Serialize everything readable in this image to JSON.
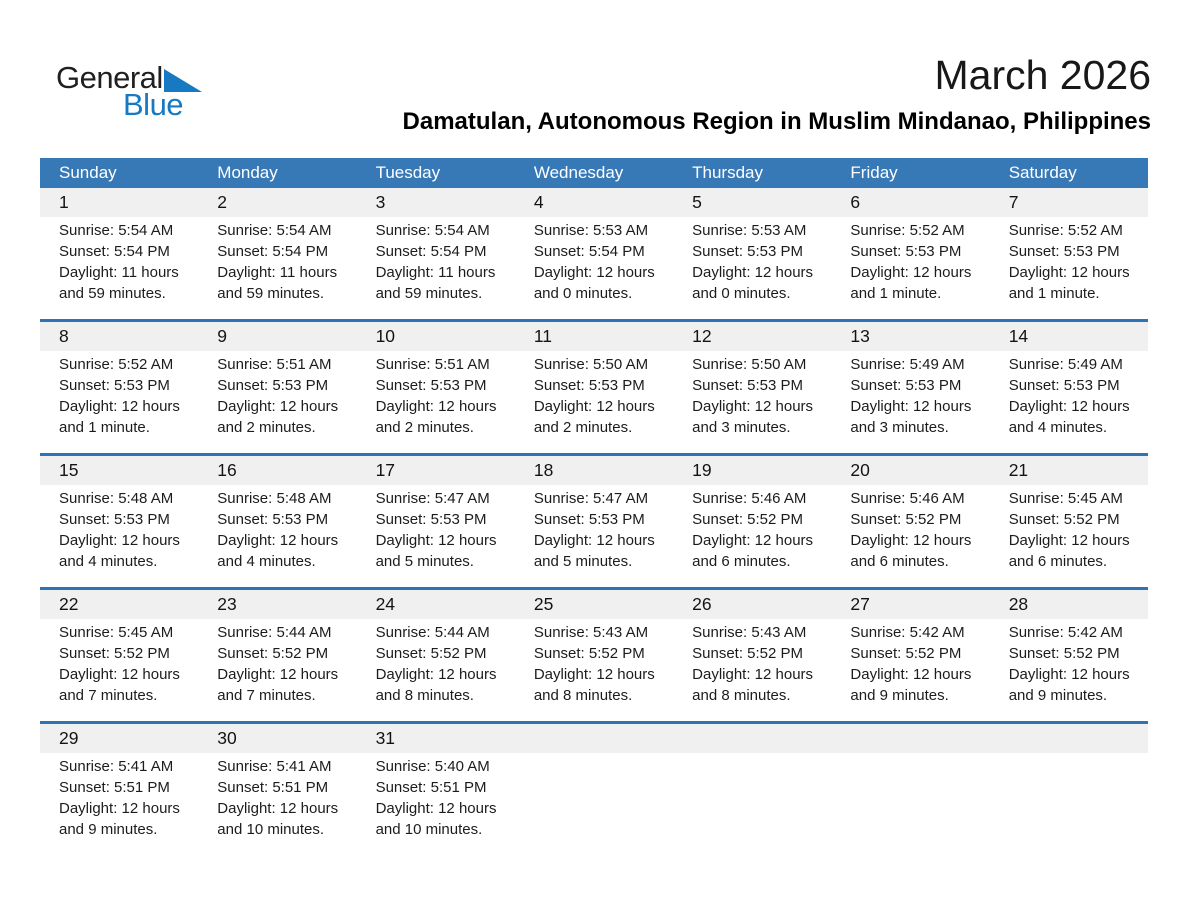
{
  "logo": {
    "general": "General",
    "blue": "Blue"
  },
  "title": "March 2026",
  "subtitle": "Damatulan, Autonomous Region in Muslim Mindanao, Philippines",
  "weekdays": [
    "Sunday",
    "Monday",
    "Tuesday",
    "Wednesday",
    "Thursday",
    "Friday",
    "Saturday"
  ],
  "colors": {
    "header_bg": "#3779B7",
    "separator": "#2E74B5",
    "strip_bg": "#F0F0F0",
    "logo_blue": "#1779C1"
  },
  "weeks": [
    [
      {
        "day": "1",
        "sunrise": "Sunrise: 5:54 AM",
        "sunset": "Sunset: 5:54 PM",
        "daylight1": "Daylight: 11 hours",
        "daylight2": "and 59 minutes."
      },
      {
        "day": "2",
        "sunrise": "Sunrise: 5:54 AM",
        "sunset": "Sunset: 5:54 PM",
        "daylight1": "Daylight: 11 hours",
        "daylight2": "and 59 minutes."
      },
      {
        "day": "3",
        "sunrise": "Sunrise: 5:54 AM",
        "sunset": "Sunset: 5:54 PM",
        "daylight1": "Daylight: 11 hours",
        "daylight2": "and 59 minutes."
      },
      {
        "day": "4",
        "sunrise": "Sunrise: 5:53 AM",
        "sunset": "Sunset: 5:54 PM",
        "daylight1": "Daylight: 12 hours",
        "daylight2": "and 0 minutes."
      },
      {
        "day": "5",
        "sunrise": "Sunrise: 5:53 AM",
        "sunset": "Sunset: 5:53 PM",
        "daylight1": "Daylight: 12 hours",
        "daylight2": "and 0 minutes."
      },
      {
        "day": "6",
        "sunrise": "Sunrise: 5:52 AM",
        "sunset": "Sunset: 5:53 PM",
        "daylight1": "Daylight: 12 hours",
        "daylight2": "and 1 minute."
      },
      {
        "day": "7",
        "sunrise": "Sunrise: 5:52 AM",
        "sunset": "Sunset: 5:53 PM",
        "daylight1": "Daylight: 12 hours",
        "daylight2": "and 1 minute."
      }
    ],
    [
      {
        "day": "8",
        "sunrise": "Sunrise: 5:52 AM",
        "sunset": "Sunset: 5:53 PM",
        "daylight1": "Daylight: 12 hours",
        "daylight2": "and 1 minute."
      },
      {
        "day": "9",
        "sunrise": "Sunrise: 5:51 AM",
        "sunset": "Sunset: 5:53 PM",
        "daylight1": "Daylight: 12 hours",
        "daylight2": "and 2 minutes."
      },
      {
        "day": "10",
        "sunrise": "Sunrise: 5:51 AM",
        "sunset": "Sunset: 5:53 PM",
        "daylight1": "Daylight: 12 hours",
        "daylight2": "and 2 minutes."
      },
      {
        "day": "11",
        "sunrise": "Sunrise: 5:50 AM",
        "sunset": "Sunset: 5:53 PM",
        "daylight1": "Daylight: 12 hours",
        "daylight2": "and 2 minutes."
      },
      {
        "day": "12",
        "sunrise": "Sunrise: 5:50 AM",
        "sunset": "Sunset: 5:53 PM",
        "daylight1": "Daylight: 12 hours",
        "daylight2": "and 3 minutes."
      },
      {
        "day": "13",
        "sunrise": "Sunrise: 5:49 AM",
        "sunset": "Sunset: 5:53 PM",
        "daylight1": "Daylight: 12 hours",
        "daylight2": "and 3 minutes."
      },
      {
        "day": "14",
        "sunrise": "Sunrise: 5:49 AM",
        "sunset": "Sunset: 5:53 PM",
        "daylight1": "Daylight: 12 hours",
        "daylight2": "and 4 minutes."
      }
    ],
    [
      {
        "day": "15",
        "sunrise": "Sunrise: 5:48 AM",
        "sunset": "Sunset: 5:53 PM",
        "daylight1": "Daylight: 12 hours",
        "daylight2": "and 4 minutes."
      },
      {
        "day": "16",
        "sunrise": "Sunrise: 5:48 AM",
        "sunset": "Sunset: 5:53 PM",
        "daylight1": "Daylight: 12 hours",
        "daylight2": "and 4 minutes."
      },
      {
        "day": "17",
        "sunrise": "Sunrise: 5:47 AM",
        "sunset": "Sunset: 5:53 PM",
        "daylight1": "Daylight: 12 hours",
        "daylight2": "and 5 minutes."
      },
      {
        "day": "18",
        "sunrise": "Sunrise: 5:47 AM",
        "sunset": "Sunset: 5:53 PM",
        "daylight1": "Daylight: 12 hours",
        "daylight2": "and 5 minutes."
      },
      {
        "day": "19",
        "sunrise": "Sunrise: 5:46 AM",
        "sunset": "Sunset: 5:52 PM",
        "daylight1": "Daylight: 12 hours",
        "daylight2": "and 6 minutes."
      },
      {
        "day": "20",
        "sunrise": "Sunrise: 5:46 AM",
        "sunset": "Sunset: 5:52 PM",
        "daylight1": "Daylight: 12 hours",
        "daylight2": "and 6 minutes."
      },
      {
        "day": "21",
        "sunrise": "Sunrise: 5:45 AM",
        "sunset": "Sunset: 5:52 PM",
        "daylight1": "Daylight: 12 hours",
        "daylight2": "and 6 minutes."
      }
    ],
    [
      {
        "day": "22",
        "sunrise": "Sunrise: 5:45 AM",
        "sunset": "Sunset: 5:52 PM",
        "daylight1": "Daylight: 12 hours",
        "daylight2": "and 7 minutes."
      },
      {
        "day": "23",
        "sunrise": "Sunrise: 5:44 AM",
        "sunset": "Sunset: 5:52 PM",
        "daylight1": "Daylight: 12 hours",
        "daylight2": "and 7 minutes."
      },
      {
        "day": "24",
        "sunrise": "Sunrise: 5:44 AM",
        "sunset": "Sunset: 5:52 PM",
        "daylight1": "Daylight: 12 hours",
        "daylight2": "and 8 minutes."
      },
      {
        "day": "25",
        "sunrise": "Sunrise: 5:43 AM",
        "sunset": "Sunset: 5:52 PM",
        "daylight1": "Daylight: 12 hours",
        "daylight2": "and 8 minutes."
      },
      {
        "day": "26",
        "sunrise": "Sunrise: 5:43 AM",
        "sunset": "Sunset: 5:52 PM",
        "daylight1": "Daylight: 12 hours",
        "daylight2": "and 8 minutes."
      },
      {
        "day": "27",
        "sunrise": "Sunrise: 5:42 AM",
        "sunset": "Sunset: 5:52 PM",
        "daylight1": "Daylight: 12 hours",
        "daylight2": "and 9 minutes."
      },
      {
        "day": "28",
        "sunrise": "Sunrise: 5:42 AM",
        "sunset": "Sunset: 5:52 PM",
        "daylight1": "Daylight: 12 hours",
        "daylight2": "and 9 minutes."
      }
    ],
    [
      {
        "day": "29",
        "sunrise": "Sunrise: 5:41 AM",
        "sunset": "Sunset: 5:51 PM",
        "daylight1": "Daylight: 12 hours",
        "daylight2": "and 9 minutes."
      },
      {
        "day": "30",
        "sunrise": "Sunrise: 5:41 AM",
        "sunset": "Sunset: 5:51 PM",
        "daylight1": "Daylight: 12 hours",
        "daylight2": "and 10 minutes."
      },
      {
        "day": "31",
        "sunrise": "Sunrise: 5:40 AM",
        "sunset": "Sunset: 5:51 PM",
        "daylight1": "Daylight: 12 hours",
        "daylight2": "and 10 minutes."
      },
      null,
      null,
      null,
      null
    ]
  ]
}
